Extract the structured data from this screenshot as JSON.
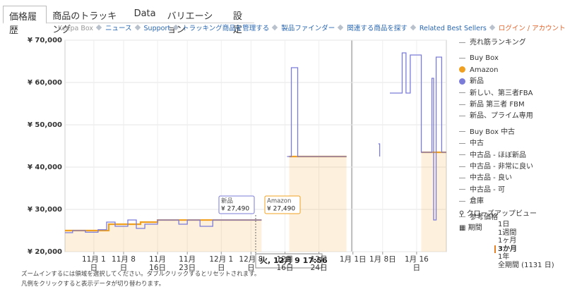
{
  "tabs": [
    "価格履歴",
    "商品のトラッキング",
    "Data",
    "バリエーション",
    "設定"
  ],
  "links": [
    "Keepa Box",
    "ニュース",
    "Support",
    "トラッキング商品を管理する",
    "製品ファインダー",
    "関連する商品を探す",
    "Related Best Sellers",
    "ログイン / アカウントの登録"
  ],
  "chart_data": {
    "type": "line",
    "step": true,
    "grid": true,
    "xlim": [
      25.2,
      115
    ],
    "xticks": [
      {
        "value": 32,
        "label": "11月 1日"
      },
      {
        "value": 39,
        "label": "11月 8日"
      },
      {
        "value": 47,
        "label": "11月 16日"
      },
      {
        "value": 54,
        "label": "11月 23日"
      },
      {
        "value": 62,
        "label": "12月 1日"
      },
      {
        "value": 69,
        "label": "12月 8日"
      },
      {
        "value": 77,
        "label": "12月 16日"
      },
      {
        "value": 85,
        "label": "12月 24日"
      },
      {
        "value": 93,
        "label": "1月 1日"
      },
      {
        "value": 100,
        "label": "1月 8日"
      },
      {
        "value": 108,
        "label": "1月 16日"
      }
    ],
    "ylim": [
      20000,
      70000
    ],
    "yticks": [
      {
        "value": 20000,
        "label": "¥ 20,000"
      },
      {
        "value": 30000,
        "label": "¥ 30,000"
      },
      {
        "value": 40000,
        "label": "¥ 40,000"
      },
      {
        "value": 50000,
        "label": "¥ 50,000"
      },
      {
        "value": 60000,
        "label": "¥ 60,000"
      },
      {
        "value": 70000,
        "label": "¥ 70,000"
      }
    ],
    "series": [
      {
        "name": "Amazon",
        "color": "#f0a020",
        "area": true,
        "x": [
          25.2,
          31.5,
          35.5,
          43,
          47,
          71.5,
          null,
          78,
          91.5,
          null,
          109.1,
          115
        ],
        "values": [
          25000,
          25000,
          26500,
          27000,
          27490,
          27490,
          null,
          42500,
          42500,
          null,
          43500,
          43500
        ]
      },
      {
        "name": "新品",
        "color": "#7b7bd8",
        "area": false,
        "x": [
          25.2,
          27,
          30,
          33,
          35,
          37,
          40,
          42,
          44,
          47,
          52,
          54,
          57,
          60,
          71.5,
          null,
          77.5,
          78.5,
          80,
          91.5,
          null,
          99,
          99.3,
          null,
          101.7,
          104.6,
          105.5,
          106.5,
          109.1,
          111.6,
          112,
          112.6,
          113.9,
          115
        ],
        "values": [
          24500,
          25000,
          24600,
          25200,
          27000,
          26000,
          27500,
          25500,
          26500,
          27490,
          26500,
          27490,
          26000,
          27490,
          27490,
          null,
          42500,
          63500,
          42500,
          42500,
          null,
          45500,
          42500,
          null,
          57500,
          67000,
          57500,
          66500,
          43500,
          61000,
          27500,
          66000,
          43500,
          43500
        ]
      }
    ],
    "tooltips": [
      {
        "name": "新品",
        "value_label": "¥ 27,490"
      },
      {
        "name": "Amazon",
        "value_label": "¥ 27,490"
      }
    ],
    "crosshair_label": "火, 12月 9 17:56",
    "annotations": [
      "ズームインするには領域を選択してください。ダブルクリックするとリセットされます。",
      "凡例をクリックすると表示データが切り替わります。"
    ],
    "legend_head": [
      "売れ筋ランキング",
      "Buy Box"
    ],
    "legend_groups": [
      [
        "新しい、第三者FBA",
        "新品 第三者 FBM",
        "新品、プライム専用"
      ],
      [
        "Buy Box 中古",
        "中古",
        "中古品 - ほぼ新品",
        "中古品 - 非常に良い",
        "中古品 - 良い",
        "中古品 - 可",
        "倉庫"
      ],
      [
        "参考価格"
      ]
    ]
  },
  "side_panel": {
    "closeup": "クローズアップビュー",
    "period": "期間",
    "ranges": [
      "1日",
      "1週間",
      "1ヶ月",
      "3か月",
      "1年",
      "全期間 (1131 日)"
    ],
    "selected": 3
  }
}
